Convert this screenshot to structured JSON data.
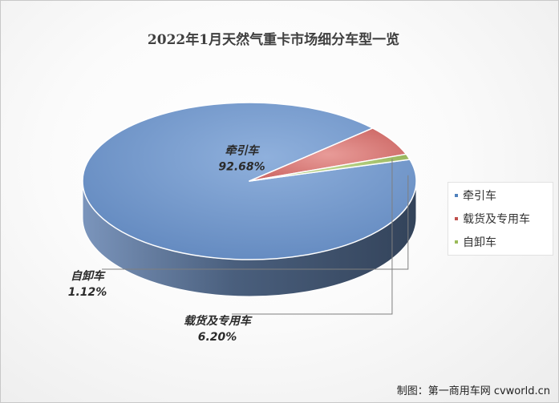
{
  "chart_data": {
    "type": "pie",
    "title": "2022年1月天然气重卡市场细分车型一览",
    "categories": [
      "牵引车",
      "载货及专用车",
      "自卸车"
    ],
    "values": [
      92.68,
      6.2,
      1.12
    ],
    "value_labels": [
      "92.68%",
      "6.20%",
      "1.12%"
    ],
    "colors": [
      "#6f93c6",
      "#c8605e",
      "#9cbb5e"
    ],
    "legend_position": "right"
  },
  "legend": {
    "items": [
      {
        "label": "牵引车",
        "color": "#4f81bd"
      },
      {
        "label": "载货及专用车",
        "color": "#c0504d"
      },
      {
        "label": "自卸车",
        "color": "#9bbb59"
      }
    ]
  },
  "credit": "制图：第一商用车网 cvworld.cn"
}
